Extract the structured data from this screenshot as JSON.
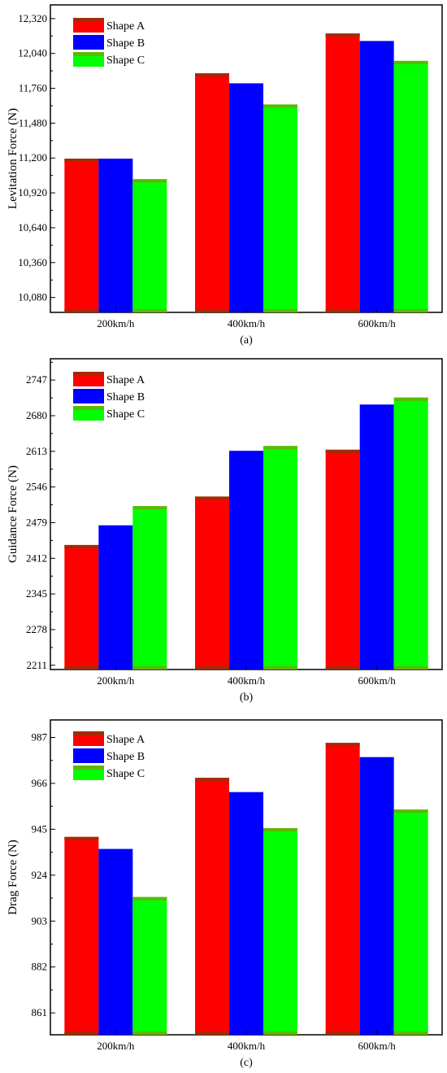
{
  "colors": {
    "shape_a": "#ff0000",
    "shape_b": "#0000ff",
    "shape_c": "#00ff00",
    "cap_a": "#a52a00",
    "cap_c": "#5cb800"
  },
  "legend": [
    "Shape A",
    "Shape B",
    "Shape C"
  ],
  "chart_data": [
    {
      "type": "bar",
      "categories": [
        "200km/h",
        "400km/h",
        "600km/h"
      ],
      "series": [
        {
          "name": "Shape A",
          "values": [
            11195,
            11880,
            12200
          ]
        },
        {
          "name": "Shape B",
          "values": [
            11195,
            11800,
            12140
          ]
        },
        {
          "name": "Shape C",
          "values": [
            11030,
            11630,
            11980
          ]
        }
      ],
      "ylabel": "Levitation Force (N)",
      "caption": "(a)",
      "ylim": [
        9960,
        12430
      ],
      "yticks": [
        "10,080",
        "10,360",
        "10,640",
        "10,920",
        "11,200",
        "11,480",
        "11,760",
        "12,040",
        "12,320"
      ],
      "ytick_values": [
        10080,
        10360,
        10640,
        10920,
        11200,
        11480,
        11760,
        12040,
        12320
      ],
      "legend_position": "top-left"
    },
    {
      "type": "bar",
      "categories": [
        "200km/h",
        "400km/h",
        "600km/h"
      ],
      "series": [
        {
          "name": "Shape A",
          "values": [
            2437,
            2528,
            2616
          ]
        },
        {
          "name": "Shape B",
          "values": [
            2474,
            2614,
            2701
          ]
        },
        {
          "name": "Shape C",
          "values": [
            2510,
            2623,
            2714
          ]
        }
      ],
      "ylabel": "Guidance Force (N)",
      "caption": "(b)",
      "ylim": [
        2203,
        2787
      ],
      "yticks": [
        "2211",
        "2278",
        "2345",
        "2412",
        "2479",
        "2546",
        "2613",
        "2680",
        "2747"
      ],
      "ytick_values": [
        2211,
        2278,
        2345,
        2412,
        2479,
        2546,
        2613,
        2680,
        2747
      ],
      "legend_position": "top-left"
    },
    {
      "type": "bar",
      "categories": [
        "200km/h",
        "400km/h",
        "600km/h"
      ],
      "series": [
        {
          "name": "Shape A",
          "values": [
            941.5,
            968.5,
            984.5
          ]
        },
        {
          "name": "Shape B",
          "values": [
            936,
            962,
            978
          ]
        },
        {
          "name": "Shape C",
          "values": [
            914,
            945.5,
            954
          ]
        }
      ],
      "ylabel": "Drag Force (N)",
      "caption": "(c)",
      "ylim": [
        851,
        995
      ],
      "yticks": [
        "861",
        "882",
        "903",
        "924",
        "945",
        "966",
        "987"
      ],
      "ytick_values": [
        861,
        882,
        903,
        924,
        945,
        966,
        987
      ],
      "legend_position": "top-left"
    }
  ]
}
